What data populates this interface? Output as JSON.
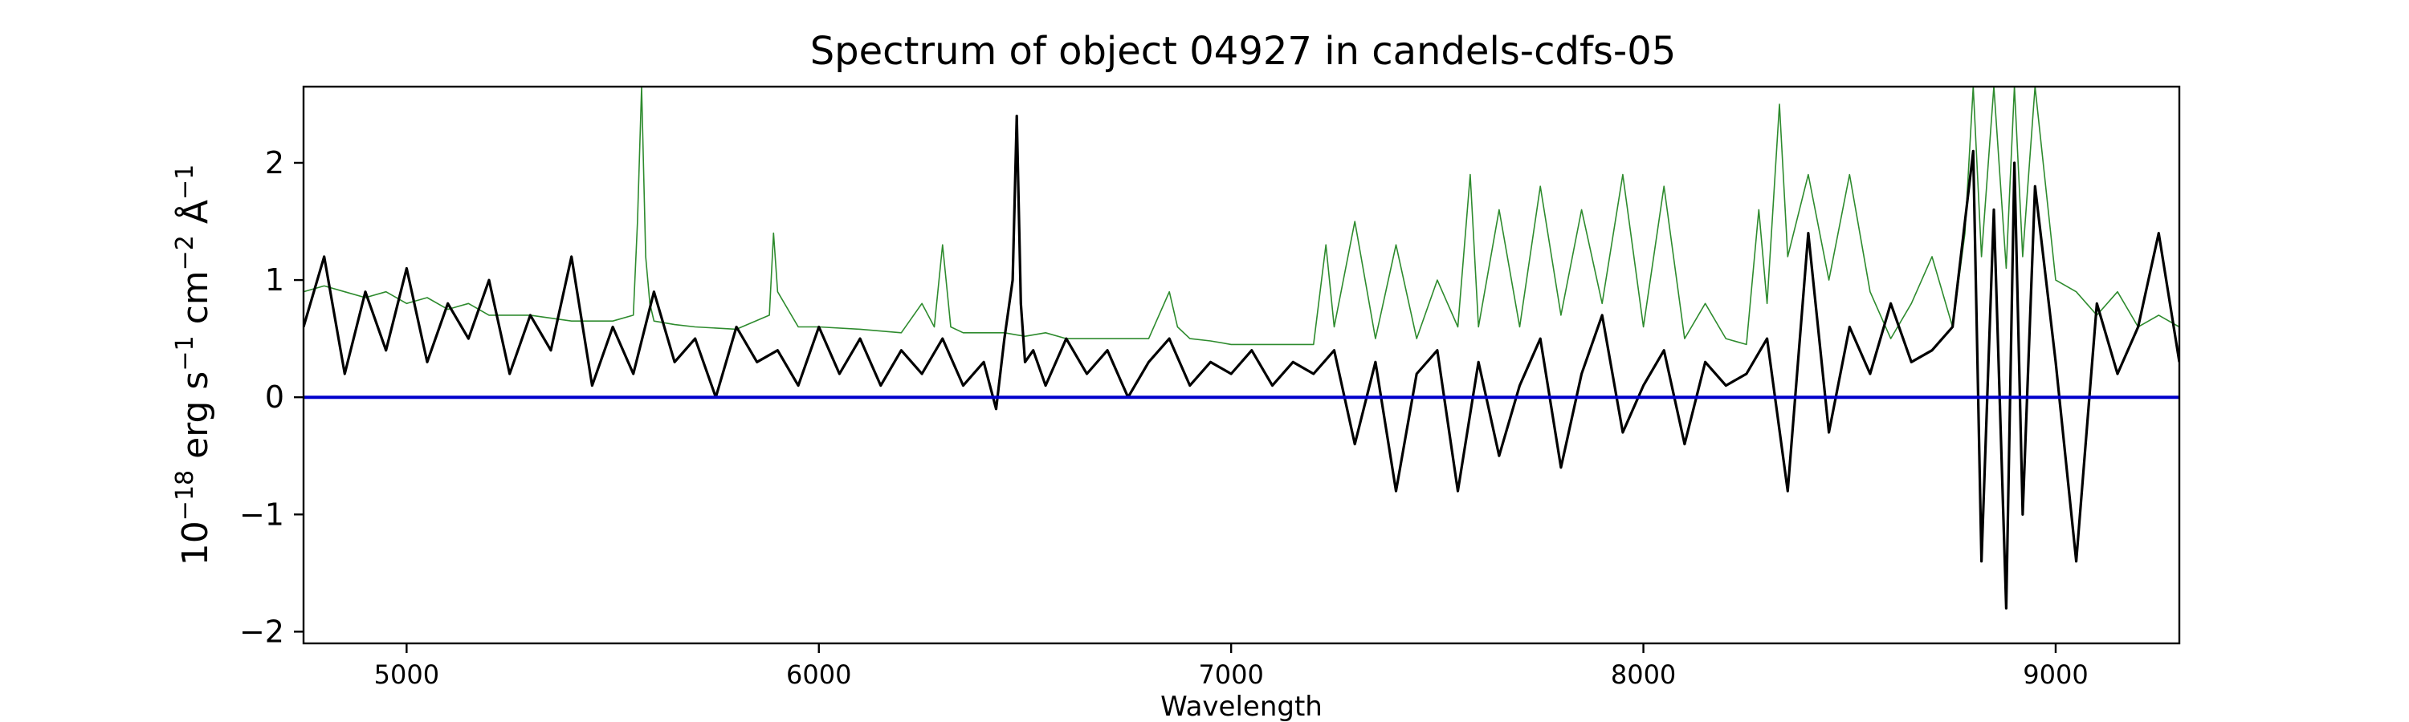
{
  "chart_data": {
    "type": "line",
    "title": "Spectrum of object 04927 in candels-cdfs-05",
    "xlabel": "Wavelength",
    "ylabel": {
      "base": "10",
      "base_exp": "−18",
      "t1": " erg s",
      "e1": "−1",
      "t2": " cm",
      "e2": "−2",
      "t3": " Å",
      "e3": "−1"
    },
    "xlim": [
      4750,
      9300
    ],
    "ylim": [
      -2.1,
      2.65
    ],
    "xticks": [
      {
        "value": 5000,
        "label": "5000"
      },
      {
        "value": 6000,
        "label": "6000"
      },
      {
        "value": 7000,
        "label": "7000"
      },
      {
        "value": 8000,
        "label": "8000"
      },
      {
        "value": 9000,
        "label": "9000"
      }
    ],
    "yticks": [
      {
        "value": -2,
        "label": "−2"
      },
      {
        "value": -1,
        "label": "−1"
      },
      {
        "value": 0,
        "label": "0"
      },
      {
        "value": 1,
        "label": "1"
      },
      {
        "value": 2,
        "label": "2"
      }
    ],
    "grid": false,
    "colors": {
      "flux": "#000000",
      "error": "#2e8b2e",
      "zero": "#0000cc"
    },
    "series": [
      {
        "key": "flux",
        "x": [
          4750,
          4800,
          4850,
          4900,
          4950,
          5000,
          5050,
          5100,
          5150,
          5200,
          5250,
          5300,
          5350,
          5400,
          5450,
          5500,
          5550,
          5600,
          5650,
          5700,
          5750,
          5800,
          5850,
          5900,
          5950,
          6000,
          6050,
          6100,
          6150,
          6200,
          6250,
          6300,
          6350,
          6400,
          6430,
          6450,
          6470,
          6480,
          6490,
          6500,
          6520,
          6550,
          6600,
          6650,
          6700,
          6750,
          6800,
          6850,
          6900,
          6950,
          7000,
          7050,
          7100,
          7150,
          7200,
          7250,
          7300,
          7350,
          7400,
          7450,
          7500,
          7550,
          7600,
          7650,
          7700,
          7750,
          7800,
          7850,
          7900,
          7950,
          8000,
          8050,
          8100,
          8150,
          8200,
          8250,
          8300,
          8350,
          8400,
          8450,
          8500,
          8550,
          8600,
          8650,
          8700,
          8750,
          8800,
          8820,
          8850,
          8880,
          8900,
          8920,
          8950,
          9000,
          9050,
          9100,
          9150,
          9200,
          9250,
          9300
        ],
        "y": [
          0.6,
          1.2,
          0.2,
          0.9,
          0.4,
          1.1,
          0.3,
          0.8,
          0.5,
          1.0,
          0.2,
          0.7,
          0.4,
          1.2,
          0.1,
          0.6,
          0.2,
          0.9,
          0.3,
          0.5,
          0.0,
          0.6,
          0.3,
          0.4,
          0.1,
          0.6,
          0.2,
          0.5,
          0.1,
          0.4,
          0.2,
          0.5,
          0.1,
          0.3,
          -0.1,
          0.5,
          1.0,
          2.4,
          0.8,
          0.3,
          0.4,
          0.1,
          0.5,
          0.2,
          0.4,
          0.0,
          0.3,
          0.5,
          0.1,
          0.3,
          0.2,
          0.4,
          0.1,
          0.3,
          0.2,
          0.4,
          -0.4,
          0.3,
          -0.8,
          0.2,
          0.4,
          -0.8,
          0.3,
          -0.5,
          0.1,
          0.5,
          -0.6,
          0.2,
          0.7,
          -0.3,
          0.1,
          0.4,
          -0.4,
          0.3,
          0.1,
          0.2,
          0.5,
          -0.8,
          1.4,
          -0.3,
          0.6,
          0.2,
          0.8,
          0.3,
          0.4,
          0.6,
          2.1,
          -1.4,
          1.6,
          -1.8,
          2.0,
          -1.0,
          1.8,
          0.3,
          -1.4,
          0.8,
          0.2,
          0.6,
          1.4,
          0.3
        ]
      },
      {
        "key": "error",
        "x": [
          4750,
          4800,
          4850,
          4900,
          4950,
          5000,
          5050,
          5100,
          5150,
          5200,
          5300,
          5400,
          5500,
          5550,
          5560,
          5570,
          5580,
          5590,
          5600,
          5650,
          5700,
          5800,
          5880,
          5890,
          5900,
          5950,
          6000,
          6100,
          6200,
          6250,
          6280,
          6300,
          6320,
          6350,
          6400,
          6450,
          6500,
          6550,
          6600,
          6700,
          6800,
          6850,
          6870,
          6900,
          6950,
          7000,
          7100,
          7200,
          7230,
          7250,
          7300,
          7350,
          7400,
          7450,
          7500,
          7550,
          7580,
          7600,
          7650,
          7700,
          7750,
          7800,
          7850,
          7900,
          7950,
          8000,
          8050,
          8100,
          8150,
          8200,
          8250,
          8280,
          8300,
          8330,
          8350,
          8400,
          8450,
          8500,
          8550,
          8600,
          8650,
          8700,
          8750,
          8780,
          8800,
          8820,
          8850,
          8880,
          8900,
          8920,
          8950,
          9000,
          9050,
          9100,
          9150,
          9200,
          9250,
          9300
        ],
        "y": [
          0.9,
          0.95,
          0.9,
          0.85,
          0.9,
          0.8,
          0.85,
          0.75,
          0.8,
          0.7,
          0.7,
          0.65,
          0.65,
          0.7,
          1.5,
          2.65,
          1.2,
          0.8,
          0.65,
          0.62,
          0.6,
          0.58,
          0.7,
          1.4,
          0.9,
          0.6,
          0.6,
          0.58,
          0.55,
          0.8,
          0.6,
          1.3,
          0.6,
          0.55,
          0.55,
          0.55,
          0.52,
          0.55,
          0.5,
          0.5,
          0.5,
          0.9,
          0.6,
          0.5,
          0.48,
          0.45,
          0.45,
          0.45,
          1.3,
          0.6,
          1.5,
          0.5,
          1.3,
          0.5,
          1.0,
          0.6,
          1.9,
          0.6,
          1.6,
          0.6,
          1.8,
          0.7,
          1.6,
          0.8,
          1.9,
          0.6,
          1.8,
          0.5,
          0.8,
          0.5,
          0.45,
          1.6,
          0.8,
          2.5,
          1.2,
          1.9,
          1.0,
          1.9,
          0.9,
          0.5,
          0.8,
          1.2,
          0.6,
          1.4,
          2.65,
          1.2,
          2.65,
          1.1,
          2.65,
          1.2,
          2.65,
          1.0,
          0.9,
          0.7,
          0.9,
          0.6,
          0.7,
          0.6
        ]
      },
      {
        "key": "zero",
        "x": [
          4750,
          9300
        ],
        "y": [
          0,
          0
        ]
      }
    ]
  }
}
